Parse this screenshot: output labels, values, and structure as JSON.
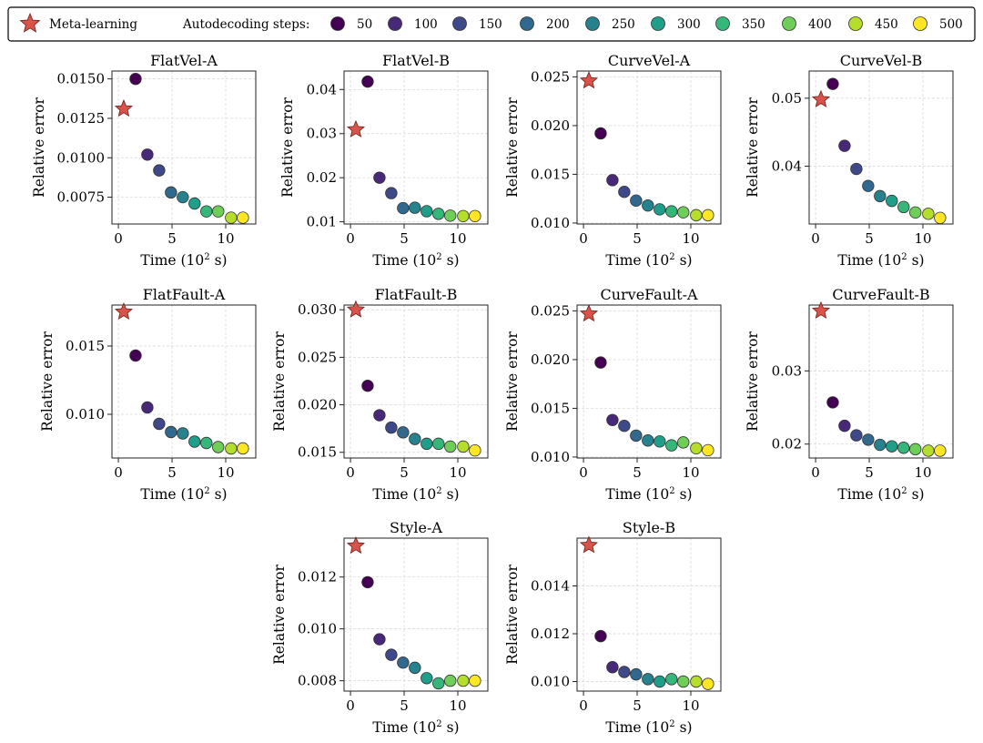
{
  "legend": {
    "meta_label": "Meta-learning",
    "steps_title": "Autodecoding steps:",
    "steps": [
      "50",
      "100",
      "150",
      "200",
      "250",
      "300",
      "350",
      "400",
      "450",
      "500"
    ],
    "colors": [
      "#440154",
      "#482878",
      "#3e4989",
      "#31688e",
      "#26828e",
      "#1f9e89",
      "#35b779",
      "#6ece58",
      "#b5de2b",
      "#fde725"
    ],
    "meta_color": "#d9534a"
  },
  "chart_data": [
    {
      "type": "scatter",
      "title": "FlatVel-A",
      "xlabel": "Time (10² s)",
      "ylabel": "Relative error",
      "xlim": [
        -0.6,
        12.8
      ],
      "ylim": [
        0.0058,
        0.0155
      ],
      "yticks": [
        0.0075,
        0.01,
        0.0125,
        0.015
      ],
      "ytick_labels": [
        "0.0075",
        "0.0100",
        "0.0125",
        "0.0150"
      ],
      "xticks": [
        0,
        5,
        10
      ],
      "meta": {
        "x": 0.5,
        "y": 0.0131
      },
      "x": [
        1.6,
        2.7,
        3.8,
        4.9,
        6.0,
        7.1,
        8.2,
        9.3,
        10.5,
        11.6
      ],
      "y": [
        0.015,
        0.0102,
        0.0092,
        0.0078,
        0.0075,
        0.0071,
        0.0066,
        0.0066,
        0.0062,
        0.0062
      ]
    },
    {
      "type": "scatter",
      "title": "FlatVel-B",
      "xlabel": "Time (10² s)",
      "ylabel": "Relative error",
      "xlim": [
        -0.6,
        12.8
      ],
      "ylim": [
        0.0095,
        0.0442
      ],
      "yticks": [
        0.01,
        0.02,
        0.03,
        0.04
      ],
      "ytick_labels": [
        "0.01",
        "0.02",
        "0.03",
        "0.04"
      ],
      "xticks": [
        0,
        5,
        10
      ],
      "meta": {
        "x": 0.5,
        "y": 0.0309
      },
      "x": [
        1.6,
        2.7,
        3.8,
        4.9,
        6.0,
        7.1,
        8.2,
        9.3,
        10.5,
        11.6
      ],
      "y": [
        0.0418,
        0.02,
        0.0165,
        0.0131,
        0.0132,
        0.0124,
        0.0118,
        0.0114,
        0.0113,
        0.0113
      ]
    },
    {
      "type": "scatter",
      "title": "CurveVel-A",
      "xlabel": "Time (10² s)",
      "ylabel": "Relative error",
      "xlim": [
        -0.6,
        12.8
      ],
      "ylim": [
        0.0099,
        0.0256
      ],
      "yticks": [
        0.01,
        0.015,
        0.02,
        0.025
      ],
      "ytick_labels": [
        "0.010",
        "0.015",
        "0.020",
        "0.025"
      ],
      "xticks": [
        0,
        5,
        10
      ],
      "meta": {
        "x": 0.5,
        "y": 0.0246
      },
      "x": [
        1.6,
        2.7,
        3.8,
        4.9,
        6.0,
        7.1,
        8.2,
        9.3,
        10.5,
        11.6
      ],
      "y": [
        0.0192,
        0.0144,
        0.0132,
        0.0123,
        0.0118,
        0.0114,
        0.0112,
        0.0111,
        0.0108,
        0.0108
      ]
    },
    {
      "type": "scatter",
      "title": "CurveVel-B",
      "xlabel": "Time (10² s)",
      "ylabel": "Relative error",
      "xlim": [
        -0.6,
        12.8
      ],
      "ylim": [
        0.0315,
        0.054
      ],
      "yticks": [
        0.04,
        0.05
      ],
      "ytick_labels": [
        "0.04",
        "0.05"
      ],
      "xticks": [
        0,
        5,
        10
      ],
      "meta": {
        "x": 0.5,
        "y": 0.0498
      },
      "x": [
        1.6,
        2.7,
        3.8,
        4.9,
        6.0,
        7.1,
        8.2,
        9.3,
        10.5,
        11.6
      ],
      "y": [
        0.0521,
        0.043,
        0.0396,
        0.0371,
        0.0356,
        0.0349,
        0.034,
        0.0332,
        0.033,
        0.0324
      ]
    },
    {
      "type": "scatter",
      "title": "FlatFault-A",
      "xlabel": "Time (10² s)",
      "ylabel": "Relative error",
      "xlim": [
        -0.6,
        12.8
      ],
      "ylim": [
        0.0068,
        0.018
      ],
      "yticks": [
        0.01,
        0.015
      ],
      "ytick_labels": [
        "0.010",
        "0.015"
      ],
      "xticks": [
        0,
        5,
        10
      ],
      "meta": {
        "x": 0.5,
        "y": 0.0175
      },
      "x": [
        1.6,
        2.7,
        3.8,
        4.9,
        6.0,
        7.1,
        8.2,
        9.3,
        10.5,
        11.6
      ],
      "y": [
        0.0143,
        0.0105,
        0.0093,
        0.0087,
        0.0086,
        0.008,
        0.0079,
        0.0076,
        0.0075,
        0.0075
      ]
    },
    {
      "type": "scatter",
      "title": "FlatFault-B",
      "xlabel": "Time (10² s)",
      "ylabel": "Relative error",
      "xlim": [
        -0.6,
        12.8
      ],
      "ylim": [
        0.0144,
        0.0305
      ],
      "yticks": [
        0.015,
        0.02,
        0.025,
        0.03
      ],
      "ytick_labels": [
        "0.015",
        "0.020",
        "0.025",
        "0.030"
      ],
      "xticks": [
        0,
        5,
        10
      ],
      "meta": {
        "x": 0.5,
        "y": 0.03
      },
      "x": [
        1.6,
        2.7,
        3.8,
        4.9,
        6.0,
        7.1,
        8.2,
        9.3,
        10.5,
        11.6
      ],
      "y": [
        0.022,
        0.0189,
        0.0176,
        0.0171,
        0.0164,
        0.0159,
        0.0159,
        0.0156,
        0.0156,
        0.0152
      ]
    },
    {
      "type": "scatter",
      "title": "CurveFault-A",
      "xlabel": "Time (10² s)",
      "ylabel": "Relative error",
      "xlim": [
        -0.6,
        12.8
      ],
      "ylim": [
        0.0099,
        0.0256
      ],
      "yticks": [
        0.01,
        0.015,
        0.02,
        0.025
      ],
      "ytick_labels": [
        "0.010",
        "0.015",
        "0.020",
        "0.025"
      ],
      "xticks": [
        0,
        5,
        10
      ],
      "meta": {
        "x": 0.5,
        "y": 0.0247
      },
      "x": [
        1.6,
        2.7,
        3.8,
        4.9,
        6.0,
        7.1,
        8.2,
        9.3,
        10.5,
        11.6
      ],
      "y": [
        0.0197,
        0.0138,
        0.0132,
        0.0122,
        0.0117,
        0.0116,
        0.0112,
        0.0115,
        0.0109,
        0.0107
      ]
    },
    {
      "type": "scatter",
      "title": "CurveFault-B",
      "xlabel": "Time (10² s)",
      "ylabel": "Relative error",
      "xlim": [
        -0.6,
        12.8
      ],
      "ylim": [
        0.0181,
        0.039
      ],
      "yticks": [
        0.02,
        0.03
      ],
      "ytick_labels": [
        "0.02",
        "0.03"
      ],
      "xticks": [
        0,
        5,
        10
      ],
      "meta": {
        "x": 0.5,
        "y": 0.0382
      },
      "x": [
        1.6,
        2.7,
        3.8,
        4.9,
        6.0,
        7.1,
        8.2,
        9.3,
        10.5,
        11.6
      ],
      "y": [
        0.0257,
        0.0225,
        0.0212,
        0.0206,
        0.0199,
        0.0197,
        0.0195,
        0.0193,
        0.0191,
        0.0191
      ]
    },
    {
      "type": "scatter",
      "title": "Style-A",
      "xlabel": "Time (10² s)",
      "ylabel": "Relative error",
      "xlim": [
        -0.6,
        12.8
      ],
      "ylim": [
        0.0076,
        0.0135
      ],
      "yticks": [
        0.008,
        0.01,
        0.012
      ],
      "ytick_labels": [
        "0.008",
        "0.010",
        "0.012"
      ],
      "xticks": [
        0,
        5,
        10
      ],
      "meta": {
        "x": 0.5,
        "y": 0.0132
      },
      "x": [
        1.6,
        2.7,
        3.8,
        4.9,
        6.0,
        7.1,
        8.2,
        9.3,
        10.5,
        11.6
      ],
      "y": [
        0.0118,
        0.0096,
        0.009,
        0.0087,
        0.0085,
        0.0081,
        0.0079,
        0.008,
        0.008,
        0.008
      ]
    },
    {
      "type": "scatter",
      "title": "Style-B",
      "xlabel": "Time (10² s)",
      "ylabel": "Relative error",
      "xlim": [
        -0.6,
        12.8
      ],
      "ylim": [
        0.0096,
        0.016
      ],
      "yticks": [
        0.01,
        0.012,
        0.014
      ],
      "ytick_labels": [
        "0.010",
        "0.012",
        "0.014"
      ],
      "xticks": [
        0,
        5,
        10
      ],
      "meta": {
        "x": 0.5,
        "y": 0.0157
      },
      "x": [
        1.6,
        2.7,
        3.8,
        4.9,
        6.0,
        7.1,
        8.2,
        9.3,
        10.5,
        11.6
      ],
      "y": [
        0.0119,
        0.0106,
        0.0104,
        0.0103,
        0.0101,
        0.01,
        0.0101,
        0.01,
        0.01,
        0.0099
      ]
    }
  ]
}
